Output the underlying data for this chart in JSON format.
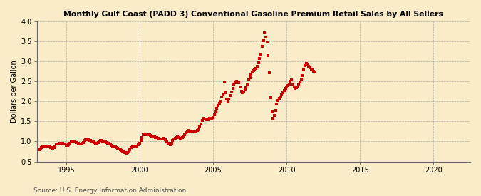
{
  "title": "Monthly Gulf Coast (PADD 3) Conventional Gasoline Premium Retail Sales by All Sellers",
  "ylabel": "Dollars per Gallon",
  "source": "Source: U.S. Energy Information Administration",
  "background_color": "#faecc8",
  "marker_color": "#cc0000",
  "xlim": [
    1993.0,
    2022.5
  ],
  "ylim": [
    0.5,
    4.0
  ],
  "yticks": [
    0.5,
    1.0,
    1.5,
    2.0,
    2.5,
    3.0,
    3.5,
    4.0
  ],
  "xticks": [
    1995,
    2000,
    2005,
    2010,
    2015,
    2020
  ],
  "data": [
    [
      1993.17,
      0.79
    ],
    [
      1993.25,
      0.82
    ],
    [
      1993.33,
      0.85
    ],
    [
      1993.42,
      0.87
    ],
    [
      1993.5,
      0.87
    ],
    [
      1993.58,
      0.88
    ],
    [
      1993.67,
      0.88
    ],
    [
      1993.75,
      0.87
    ],
    [
      1993.83,
      0.86
    ],
    [
      1993.92,
      0.85
    ],
    [
      1994.0,
      0.84
    ],
    [
      1994.08,
      0.83
    ],
    [
      1994.17,
      0.85
    ],
    [
      1994.25,
      0.89
    ],
    [
      1994.33,
      0.93
    ],
    [
      1994.42,
      0.94
    ],
    [
      1994.5,
      0.95
    ],
    [
      1994.58,
      0.96
    ],
    [
      1994.67,
      0.96
    ],
    [
      1994.75,
      0.95
    ],
    [
      1994.83,
      0.94
    ],
    [
      1994.92,
      0.93
    ],
    [
      1995.0,
      0.91
    ],
    [
      1995.08,
      0.9
    ],
    [
      1995.17,
      0.92
    ],
    [
      1995.25,
      0.96
    ],
    [
      1995.33,
      0.99
    ],
    [
      1995.42,
      1.0
    ],
    [
      1995.5,
      1.0
    ],
    [
      1995.58,
      0.99
    ],
    [
      1995.67,
      0.98
    ],
    [
      1995.75,
      0.97
    ],
    [
      1995.83,
      0.95
    ],
    [
      1995.92,
      0.94
    ],
    [
      1996.0,
      0.94
    ],
    [
      1996.08,
      0.95
    ],
    [
      1996.17,
      0.98
    ],
    [
      1996.25,
      1.02
    ],
    [
      1996.33,
      1.05
    ],
    [
      1996.42,
      1.05
    ],
    [
      1996.5,
      1.04
    ],
    [
      1996.58,
      1.03
    ],
    [
      1996.67,
      1.02
    ],
    [
      1996.75,
      1.0
    ],
    [
      1996.83,
      0.99
    ],
    [
      1996.92,
      0.98
    ],
    [
      1997.0,
      0.96
    ],
    [
      1997.08,
      0.95
    ],
    [
      1997.17,
      0.97
    ],
    [
      1997.25,
      1.01
    ],
    [
      1997.33,
      1.02
    ],
    [
      1997.42,
      1.03
    ],
    [
      1997.5,
      1.01
    ],
    [
      1997.58,
      1.0
    ],
    [
      1997.67,
      0.99
    ],
    [
      1997.75,
      0.98
    ],
    [
      1997.83,
      0.96
    ],
    [
      1997.92,
      0.95
    ],
    [
      1998.0,
      0.93
    ],
    [
      1998.08,
      0.91
    ],
    [
      1998.17,
      0.89
    ],
    [
      1998.25,
      0.87
    ],
    [
      1998.33,
      0.86
    ],
    [
      1998.42,
      0.84
    ],
    [
      1998.5,
      0.83
    ],
    [
      1998.58,
      0.82
    ],
    [
      1998.67,
      0.8
    ],
    [
      1998.75,
      0.78
    ],
    [
      1998.83,
      0.76
    ],
    [
      1998.92,
      0.74
    ],
    [
      1999.0,
      0.72
    ],
    [
      1999.08,
      0.7
    ],
    [
      1999.17,
      0.72
    ],
    [
      1999.25,
      0.76
    ],
    [
      1999.33,
      0.8
    ],
    [
      1999.42,
      0.84
    ],
    [
      1999.5,
      0.87
    ],
    [
      1999.58,
      0.89
    ],
    [
      1999.67,
      0.88
    ],
    [
      1999.75,
      0.87
    ],
    [
      1999.83,
      0.89
    ],
    [
      1999.92,
      0.92
    ],
    [
      2000.0,
      0.96
    ],
    [
      2000.08,
      1.02
    ],
    [
      2000.17,
      1.1
    ],
    [
      2000.25,
      1.16
    ],
    [
      2000.33,
      1.19
    ],
    [
      2000.42,
      1.18
    ],
    [
      2000.5,
      1.17
    ],
    [
      2000.58,
      1.17
    ],
    [
      2000.67,
      1.16
    ],
    [
      2000.75,
      1.15
    ],
    [
      2000.83,
      1.14
    ],
    [
      2000.92,
      1.13
    ],
    [
      2001.0,
      1.12
    ],
    [
      2001.08,
      1.1
    ],
    [
      2001.17,
      1.09
    ],
    [
      2001.25,
      1.08
    ],
    [
      2001.33,
      1.07
    ],
    [
      2001.42,
      1.06
    ],
    [
      2001.5,
      1.07
    ],
    [
      2001.58,
      1.08
    ],
    [
      2001.67,
      1.07
    ],
    [
      2001.75,
      1.04
    ],
    [
      2001.83,
      1.01
    ],
    [
      2001.92,
      0.96
    ],
    [
      2002.0,
      0.93
    ],
    [
      2002.08,
      0.92
    ],
    [
      2002.17,
      0.96
    ],
    [
      2002.25,
      1.02
    ],
    [
      2002.33,
      1.06
    ],
    [
      2002.42,
      1.08
    ],
    [
      2002.5,
      1.1
    ],
    [
      2002.58,
      1.11
    ],
    [
      2002.67,
      1.09
    ],
    [
      2002.75,
      1.08
    ],
    [
      2002.83,
      1.08
    ],
    [
      2002.92,
      1.1
    ],
    [
      2003.0,
      1.13
    ],
    [
      2003.08,
      1.17
    ],
    [
      2003.17,
      1.22
    ],
    [
      2003.25,
      1.26
    ],
    [
      2003.33,
      1.27
    ],
    [
      2003.42,
      1.26
    ],
    [
      2003.5,
      1.25
    ],
    [
      2003.58,
      1.24
    ],
    [
      2003.67,
      1.24
    ],
    [
      2003.75,
      1.24
    ],
    [
      2003.83,
      1.25
    ],
    [
      2003.92,
      1.27
    ],
    [
      2004.0,
      1.3
    ],
    [
      2004.08,
      1.36
    ],
    [
      2004.17,
      1.44
    ],
    [
      2004.25,
      1.52
    ],
    [
      2004.33,
      1.57
    ],
    [
      2004.42,
      1.56
    ],
    [
      2004.5,
      1.54
    ],
    [
      2004.58,
      1.54
    ],
    [
      2004.67,
      1.55
    ],
    [
      2004.75,
      1.57
    ],
    [
      2004.83,
      1.57
    ],
    [
      2004.92,
      1.58
    ],
    [
      2005.0,
      1.6
    ],
    [
      2005.08,
      1.66
    ],
    [
      2005.17,
      1.74
    ],
    [
      2005.25,
      1.82
    ],
    [
      2005.33,
      1.9
    ],
    [
      2005.42,
      1.96
    ],
    [
      2005.5,
      2.01
    ],
    [
      2005.58,
      2.12
    ],
    [
      2005.67,
      2.16
    ],
    [
      2005.75,
      2.48
    ],
    [
      2005.83,
      2.22
    ],
    [
      2005.92,
      2.06
    ],
    [
      2006.0,
      2.01
    ],
    [
      2006.08,
      2.06
    ],
    [
      2006.17,
      2.14
    ],
    [
      2006.25,
      2.24
    ],
    [
      2006.33,
      2.32
    ],
    [
      2006.42,
      2.42
    ],
    [
      2006.5,
      2.47
    ],
    [
      2006.58,
      2.51
    ],
    [
      2006.67,
      2.49
    ],
    [
      2006.75,
      2.46
    ],
    [
      2006.83,
      2.36
    ],
    [
      2006.92,
      2.26
    ],
    [
      2007.0,
      2.22
    ],
    [
      2007.08,
      2.24
    ],
    [
      2007.17,
      2.3
    ],
    [
      2007.25,
      2.37
    ],
    [
      2007.33,
      2.44
    ],
    [
      2007.42,
      2.54
    ],
    [
      2007.5,
      2.6
    ],
    [
      2007.58,
      2.67
    ],
    [
      2007.67,
      2.74
    ],
    [
      2007.75,
      2.77
    ],
    [
      2007.83,
      2.8
    ],
    [
      2007.92,
      2.82
    ],
    [
      2008.0,
      2.87
    ],
    [
      2008.08,
      2.97
    ],
    [
      2008.17,
      3.08
    ],
    [
      2008.25,
      3.18
    ],
    [
      2008.33,
      3.38
    ],
    [
      2008.42,
      3.52
    ],
    [
      2008.5,
      3.72
    ],
    [
      2008.58,
      3.6
    ],
    [
      2008.67,
      3.48
    ],
    [
      2008.75,
      3.15
    ],
    [
      2008.83,
      2.72
    ],
    [
      2008.92,
      2.1
    ],
    [
      2009.0,
      1.75
    ],
    [
      2009.08,
      1.58
    ],
    [
      2009.17,
      1.65
    ],
    [
      2009.25,
      1.78
    ],
    [
      2009.33,
      1.93
    ],
    [
      2009.42,
      2.02
    ],
    [
      2009.5,
      2.07
    ],
    [
      2009.58,
      2.12
    ],
    [
      2009.67,
      2.17
    ],
    [
      2009.75,
      2.22
    ],
    [
      2009.83,
      2.27
    ],
    [
      2009.92,
      2.32
    ],
    [
      2010.0,
      2.37
    ],
    [
      2010.08,
      2.4
    ],
    [
      2010.17,
      2.44
    ],
    [
      2010.25,
      2.5
    ],
    [
      2010.33,
      2.54
    ],
    [
      2010.42,
      2.42
    ],
    [
      2010.5,
      2.37
    ],
    [
      2010.58,
      2.32
    ],
    [
      2010.67,
      2.34
    ],
    [
      2010.75,
      2.37
    ],
    [
      2010.83,
      2.42
    ],
    [
      2010.92,
      2.48
    ],
    [
      2011.0,
      2.55
    ],
    [
      2011.08,
      2.65
    ],
    [
      2011.17,
      2.78
    ],
    [
      2011.25,
      2.9
    ],
    [
      2011.33,
      2.94
    ],
    [
      2011.42,
      2.92
    ],
    [
      2011.5,
      2.87
    ],
    [
      2011.58,
      2.84
    ],
    [
      2011.67,
      2.81
    ],
    [
      2011.75,
      2.79
    ],
    [
      2011.83,
      2.76
    ],
    [
      2011.92,
      2.73
    ]
  ]
}
